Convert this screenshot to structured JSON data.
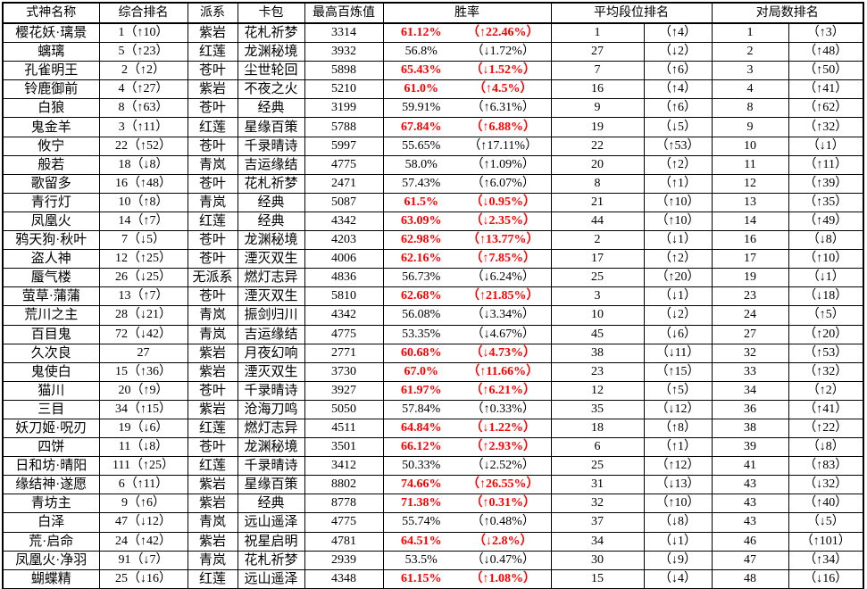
{
  "table": {
    "colors": {
      "highlight_red": "#FF0000",
      "text": "#000000",
      "border": "#000000",
      "background": "#FFFFFF"
    },
    "headers": {
      "name": "式神名称",
      "overall_rank": "综合排名",
      "faction": "派系",
      "card_pack": "卡包",
      "max_bailian": "最高百炼值",
      "win_rate": "胜率",
      "avg_tier_rank": "平均段位排名",
      "games_rank": "对局数排名"
    },
    "rows": [
      {
        "name": "樱花妖·璃景",
        "overall": "1（↑10）",
        "faction": "紫岩",
        "pack": "花札祈梦",
        "max": "3314",
        "wr": "61.12%",
        "wr_chg": "（↑22.46%）",
        "wr_red": true,
        "avg": "1",
        "avg_chg": "（↑4）",
        "games": "1",
        "games_chg": "（↑3）"
      },
      {
        "name": "螭璃",
        "overall": "5（↑23）",
        "faction": "红莲",
        "pack": "龙渊秘境",
        "max": "3932",
        "wr": "56.8%",
        "wr_chg": "（↓1.72%）",
        "wr_red": false,
        "avg": "27",
        "avg_chg": "（↓2）",
        "games": "2",
        "games_chg": "（↑48）"
      },
      {
        "name": "孔雀明王",
        "overall": "2（↑2）",
        "faction": "苍叶",
        "pack": "尘世轮回",
        "max": "5898",
        "wr": "65.43%",
        "wr_chg": "（↓1.52%）",
        "wr_red": true,
        "avg": "7",
        "avg_chg": "（↑6）",
        "games": "3",
        "games_chg": "（↑50）"
      },
      {
        "name": "铃鹿御前",
        "overall": "4（↑27）",
        "faction": "紫岩",
        "pack": "不夜之火",
        "max": "5210",
        "wr": "61.0%",
        "wr_chg": "（↑4.5%）",
        "wr_red": true,
        "avg": "16",
        "avg_chg": "（↑4）",
        "games": "4",
        "games_chg": "（↑41）"
      },
      {
        "name": "白狼",
        "overall": "8（↑63）",
        "faction": "苍叶",
        "pack": "经典",
        "max": "3199",
        "wr": "59.91%",
        "wr_chg": "（↑6.31%）",
        "wr_red": false,
        "avg": "9",
        "avg_chg": "（↑6）",
        "games": "8",
        "games_chg": "（↑62）"
      },
      {
        "name": "鬼金羊",
        "overall": "3（↑11）",
        "faction": "红莲",
        "pack": "星缘百策",
        "max": "5788",
        "wr": "67.84%",
        "wr_chg": "（↑6.88%）",
        "wr_red": true,
        "avg": "19",
        "avg_chg": "（↓5）",
        "games": "9",
        "games_chg": "（↑32）"
      },
      {
        "name": "攸宁",
        "overall": "22（↑52）",
        "faction": "苍叶",
        "pack": "千录晴诗",
        "max": "5997",
        "wr": "55.65%",
        "wr_chg": "（↑17.11%）",
        "wr_red": false,
        "avg": "22",
        "avg_chg": "（↑53）",
        "games": "10",
        "games_chg": "（↓1）"
      },
      {
        "name": "般若",
        "overall": "18（↓8）",
        "faction": "青岚",
        "pack": "吉运缘结",
        "max": "4775",
        "wr": "58.0%",
        "wr_chg": "（↑1.09%）",
        "wr_red": false,
        "avg": "20",
        "avg_chg": "（↑2）",
        "games": "11",
        "games_chg": "（↑11）"
      },
      {
        "name": "歌留多",
        "overall": "16（↑48）",
        "faction": "苍叶",
        "pack": "花札祈梦",
        "max": "2471",
        "wr": "57.43%",
        "wr_chg": "（↑6.07%）",
        "wr_red": false,
        "avg": "8",
        "avg_chg": "（↑1）",
        "games": "12",
        "games_chg": "（↑39）"
      },
      {
        "name": "青行灯",
        "overall": "10（↑8）",
        "faction": "青岚",
        "pack": "经典",
        "max": "5087",
        "wr": "61.5%",
        "wr_chg": "（↓0.95%）",
        "wr_red": true,
        "avg": "21",
        "avg_chg": "（↑10）",
        "games": "13",
        "games_chg": "（↑35）"
      },
      {
        "name": "凤凰火",
        "overall": "14（↑7）",
        "faction": "红莲",
        "pack": "经典",
        "max": "4342",
        "wr": "63.09%",
        "wr_chg": "（↓2.35%）",
        "wr_red": true,
        "avg": "44",
        "avg_chg": "（↑10）",
        "games": "14",
        "games_chg": "（↑49）"
      },
      {
        "name": "鸦天狗·秋叶",
        "overall": "7（↓5）",
        "faction": "苍叶",
        "pack": "龙渊秘境",
        "max": "4203",
        "wr": "62.98%",
        "wr_chg": "（↑13.77%）",
        "wr_red": true,
        "avg": "2",
        "avg_chg": "（↓1）",
        "games": "16",
        "games_chg": "（↓8）"
      },
      {
        "name": "盗人神",
        "overall": "12（↑25）",
        "faction": "苍叶",
        "pack": "湮灭双生",
        "max": "4006",
        "wr": "62.16%",
        "wr_chg": "（↑7.85%）",
        "wr_red": true,
        "avg": "17",
        "avg_chg": "（↑2）",
        "games": "17",
        "games_chg": "（↑10）"
      },
      {
        "name": "蜃气楼",
        "overall": "26（↓25）",
        "faction": "无派系",
        "pack": "燃灯志异",
        "max": "4836",
        "wr": "56.73%",
        "wr_chg": "（↓6.24%）",
        "wr_red": false,
        "avg": "25",
        "avg_chg": "（↑20）",
        "games": "19",
        "games_chg": "（↓1）"
      },
      {
        "name": "萤草·蒲蒲",
        "overall": "13（↑7）",
        "faction": "苍叶",
        "pack": "湮灭双生",
        "max": "5810",
        "wr": "62.68%",
        "wr_chg": "（↑21.85%）",
        "wr_red": true,
        "avg": "3",
        "avg_chg": "（↓1）",
        "games": "23",
        "games_chg": "（↓18）"
      },
      {
        "name": "荒川之主",
        "overall": "28（↓21）",
        "faction": "青岚",
        "pack": "振剑归川",
        "max": "4342",
        "wr": "56.08%",
        "wr_chg": "（↓3.34%）",
        "wr_red": false,
        "avg": "10",
        "avg_chg": "（↓2）",
        "games": "24",
        "games_chg": "（↑5）"
      },
      {
        "name": "百目鬼",
        "overall": "72（↓42）",
        "faction": "青岚",
        "pack": "吉运缘结",
        "max": "4775",
        "wr": "53.35%",
        "wr_chg": "（↓4.67%）",
        "wr_red": false,
        "avg": "45",
        "avg_chg": "（↓6）",
        "games": "27",
        "games_chg": "（↑20）"
      },
      {
        "name": "久次良",
        "overall": "27",
        "faction": "紫岩",
        "pack": "月夜幻响",
        "max": "2771",
        "wr": "60.68%",
        "wr_chg": "（↓4.73%）",
        "wr_red": true,
        "avg": "38",
        "avg_chg": "（↓11）",
        "games": "32",
        "games_chg": "（↑53）"
      },
      {
        "name": "鬼使白",
        "overall": "15（↑36）",
        "faction": "紫岩",
        "pack": "湮灭双生",
        "max": "3730",
        "wr": "67.0%",
        "wr_chg": "（↑11.66%）",
        "wr_red": true,
        "avg": "23",
        "avg_chg": "（↑15）",
        "games": "33",
        "games_chg": "（↑32）"
      },
      {
        "name": "猫川",
        "overall": "20（↑9）",
        "faction": "苍叶",
        "pack": "千录晴诗",
        "max": "3927",
        "wr": "61.97%",
        "wr_chg": "（↑6.21%）",
        "wr_red": true,
        "avg": "12",
        "avg_chg": "（↑5）",
        "games": "34",
        "games_chg": "（↑2）"
      },
      {
        "name": "三目",
        "overall": "34（↑15）",
        "faction": "紫岩",
        "pack": "沧海刀鸣",
        "max": "5050",
        "wr": "57.84%",
        "wr_chg": "（↑0.33%）",
        "wr_red": false,
        "avg": "35",
        "avg_chg": "（↓12）",
        "games": "36",
        "games_chg": "（↑41）"
      },
      {
        "name": "妖刀姬·呪刃",
        "overall": "19（↓6）",
        "faction": "红莲",
        "pack": "燃灯志异",
        "max": "4511",
        "wr": "64.84%",
        "wr_chg": "（↓1.22%）",
        "wr_red": true,
        "avg": "18",
        "avg_chg": "（↑8）",
        "games": "38",
        "games_chg": "（↑22）"
      },
      {
        "name": "四饼",
        "overall": "11（↓8）",
        "faction": "苍叶",
        "pack": "龙渊秘境",
        "max": "3501",
        "wr": "66.12%",
        "wr_chg": "（↑2.93%）",
        "wr_red": true,
        "avg": "6",
        "avg_chg": "（↑1）",
        "games": "39",
        "games_chg": "（↓8）"
      },
      {
        "name": "日和坊·晴阳",
        "overall": "111（↑25）",
        "faction": "红莲",
        "pack": "千录晴诗",
        "max": "3412",
        "wr": "50.33%",
        "wr_chg": "（↓2.52%）",
        "wr_red": false,
        "avg": "25",
        "avg_chg": "（↑12）",
        "games": "41",
        "games_chg": "（↑83）"
      },
      {
        "name": "缘结神·遂愿",
        "overall": "6（↑11）",
        "faction": "紫岩",
        "pack": "星缘百策",
        "max": "8802",
        "wr": "74.66%",
        "wr_chg": "（↑26.55%）",
        "wr_red": true,
        "avg": "31",
        "avg_chg": "（↓13）",
        "games": "43",
        "games_chg": "（↓32）"
      },
      {
        "name": "青坊主",
        "overall": "9（↑6）",
        "faction": "紫岩",
        "pack": "经典",
        "max": "8778",
        "wr": "71.38%",
        "wr_chg": "（↑0.31%）",
        "wr_red": true,
        "avg": "32",
        "avg_chg": "（↑10）",
        "games": "43",
        "games_chg": "（↑40）"
      },
      {
        "name": "白泽",
        "overall": "47（↓12）",
        "faction": "青岚",
        "pack": "远山遥泽",
        "max": "4775",
        "wr": "55.74%",
        "wr_chg": "（↑0.48%）",
        "wr_red": false,
        "avg": "37",
        "avg_chg": "（↓8）",
        "games": "43",
        "games_chg": "（↓5）"
      },
      {
        "name": "荒·启命",
        "overall": "24（↑42）",
        "faction": "紫岩",
        "pack": "祝星启明",
        "max": "4781",
        "wr": "64.51%",
        "wr_chg": "（↓2.8%）",
        "wr_red": true,
        "avg": "34",
        "avg_chg": "（↓1）",
        "games": "46",
        "games_chg": "（↑101）"
      },
      {
        "name": "凤凰火·净羽",
        "overall": "91（↓7）",
        "faction": "青岚",
        "pack": "花札祈梦",
        "max": "2939",
        "wr": "53.5%",
        "wr_chg": "（↓0.47%）",
        "wr_red": false,
        "avg": "30",
        "avg_chg": "（↓9）",
        "games": "47",
        "games_chg": "（↑34）"
      },
      {
        "name": "蝴蝶精",
        "overall": "25（↓16）",
        "faction": "红莲",
        "pack": "远山遥泽",
        "max": "4348",
        "wr": "61.15%",
        "wr_chg": "（↑1.08%）",
        "wr_red": true,
        "avg": "15",
        "avg_chg": "（↓4）",
        "games": "48",
        "games_chg": "（↓16）"
      }
    ]
  }
}
